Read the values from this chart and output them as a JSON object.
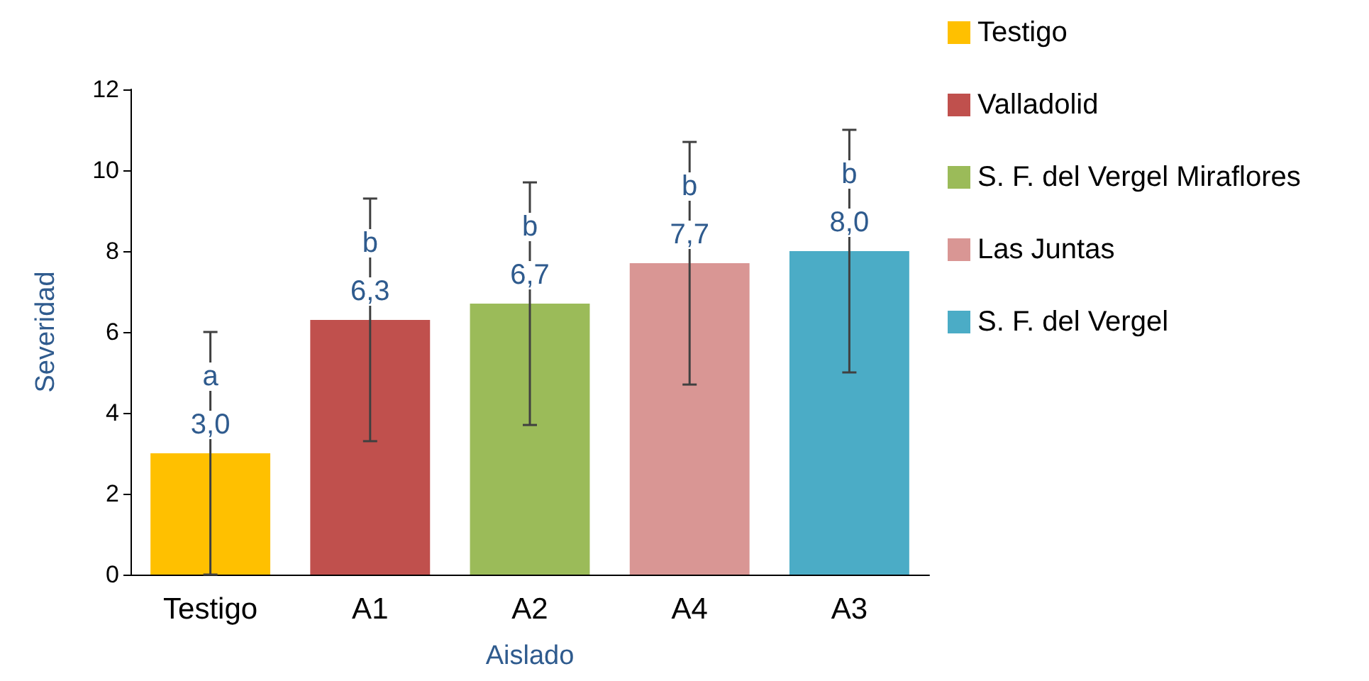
{
  "chart_data": {
    "type": "bar",
    "xlabel": "Aislado",
    "ylabel": "Severidad",
    "categories": [
      "Testigo",
      "A1",
      "A2",
      "A4",
      "A3"
    ],
    "series": [
      {
        "name": "Testigo",
        "color": "#ffc000",
        "values": [
          3.0,
          null,
          null,
          null,
          null
        ],
        "errors": [
          3,
          null,
          null,
          null,
          null
        ],
        "value_labels": [
          "3,0",
          null,
          null,
          null,
          null
        ]
      },
      {
        "name": "Valladolid",
        "color": "#c0504d",
        "values": [
          null,
          6.3,
          null,
          null,
          null
        ],
        "errors": [
          null,
          3,
          null,
          null,
          null
        ],
        "value_labels": [
          null,
          "6,3",
          null,
          null,
          null
        ]
      },
      {
        "name": "S. F. del Vergel Miraflores",
        "color": "#9bbb59",
        "values": [
          null,
          null,
          6.7,
          null,
          null
        ],
        "errors": [
          null,
          null,
          3,
          null,
          null
        ],
        "value_labels": [
          null,
          null,
          "6,7",
          null,
          null
        ]
      },
      {
        "name": "Las Juntas",
        "color": "#d99694",
        "values": [
          null,
          null,
          null,
          7.7,
          null
        ],
        "errors": [
          null,
          null,
          null,
          3,
          null
        ],
        "value_labels": [
          null,
          null,
          null,
          "7,7",
          null
        ]
      },
      {
        "name": "S. F. del Vergel",
        "color": "#4bacc6",
        "values": [
          null,
          null,
          null,
          null,
          8.0
        ],
        "errors": [
          null,
          null,
          null,
          null,
          3
        ],
        "value_labels": [
          null,
          null,
          null,
          null,
          "8,0"
        ]
      }
    ],
    "annotations": [
      {
        "text": "a",
        "x": "Testigo",
        "y": 3.0
      },
      {
        "text": "b",
        "x": "A1",
        "y": 6.3
      },
      {
        "text": "b",
        "x": "A2",
        "y": 6.7
      },
      {
        "text": "b",
        "x": "A4",
        "y": 7.7
      },
      {
        "text": "b",
        "x": "A3",
        "y": 8.0
      }
    ],
    "ylim": [
      0,
      12
    ],
    "yticks": [
      0,
      2,
      4,
      6,
      8,
      10,
      12
    ],
    "grid": false,
    "legend": "right"
  }
}
